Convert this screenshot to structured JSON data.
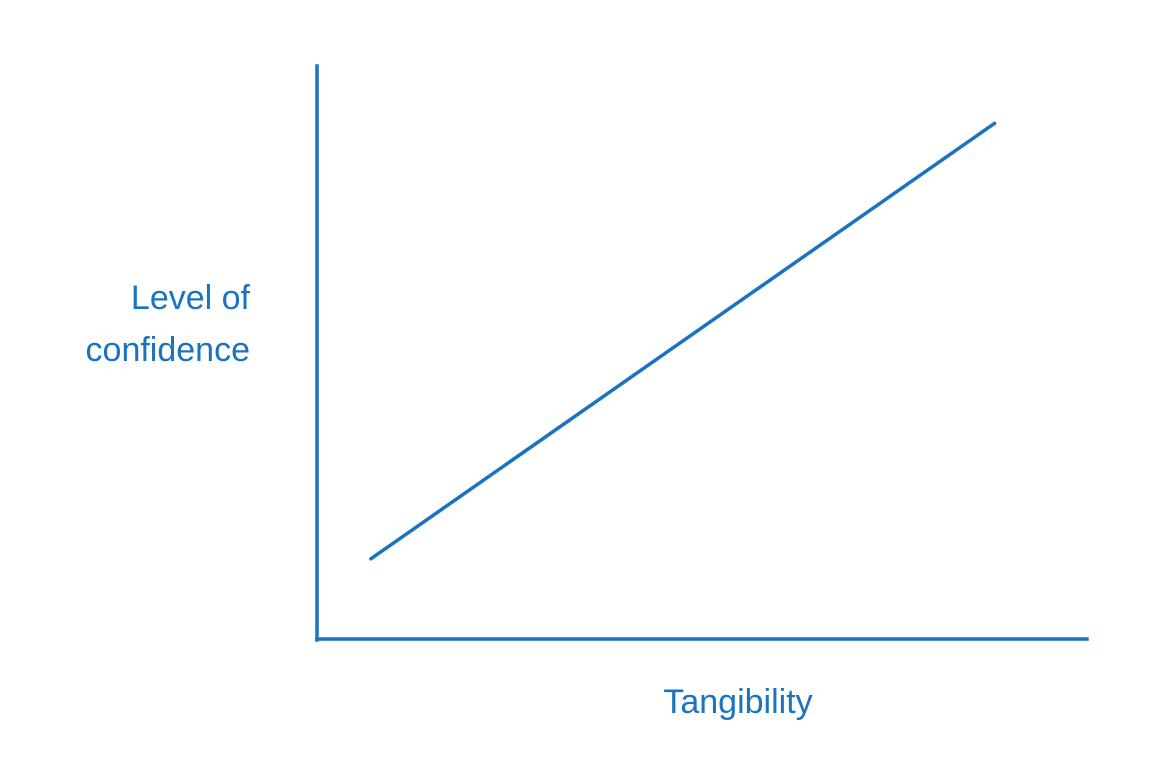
{
  "chart_data": {
    "type": "line",
    "title": "",
    "xlabel": "Tangibility",
    "ylabel_lines": [
      "Level of",
      "confidence"
    ],
    "axis_color": "#1a73c0",
    "line_color": "#1a73c0",
    "grid": false,
    "ticks": false,
    "xlim": [
      0,
      100
    ],
    "ylim": [
      0,
      100
    ],
    "series": [
      {
        "x": [
          7,
          88
        ],
        "y": [
          14,
          90
        ]
      }
    ]
  }
}
